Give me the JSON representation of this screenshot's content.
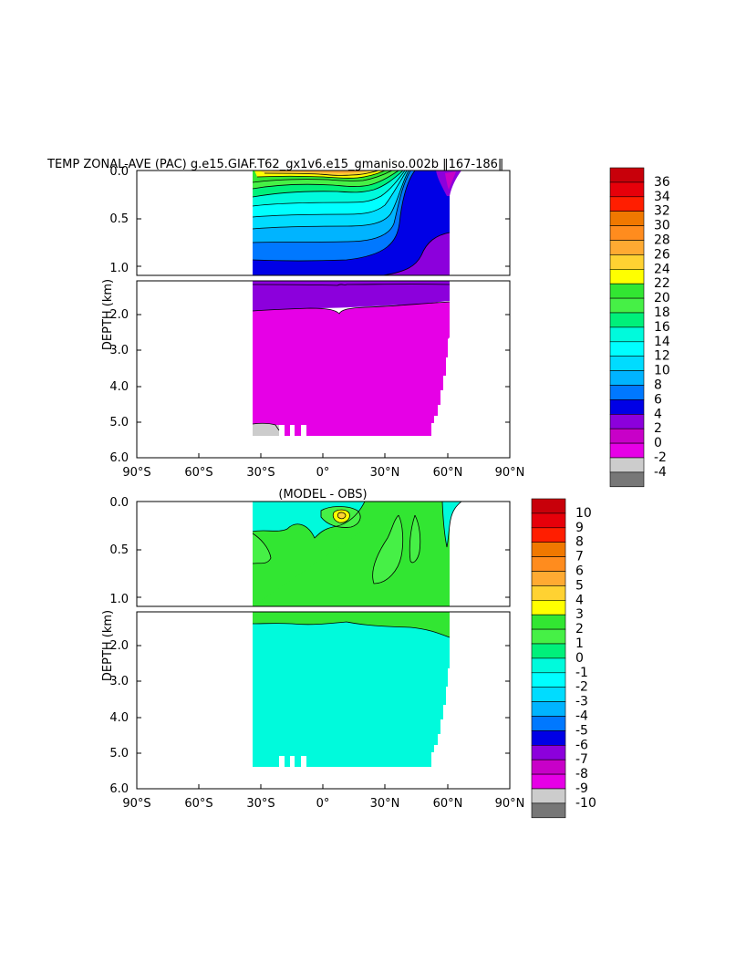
{
  "figure": {
    "title": "TEMP ZONAL-AVE (PAC) g.e15.GIAF.T62_gx1v6.e15_gmaniso.002b ‖167-186‖"
  },
  "chart_data": [
    {
      "type": "heatmap",
      "title": "TEMP ZONAL-AVE (PAC) g.e15.GIAF.T62_gx1v6.e15_gmaniso.002b ‖167-186‖",
      "ylabel": "DEPTH (km)",
      "xlim": [
        -90,
        90
      ],
      "ylim_upper_km": [
        0,
        1.1
      ],
      "ylim_lower_km": [
        1.1,
        6.0
      ],
      "x_ticks": [
        "90°S",
        "60°S",
        "30°S",
        "0°",
        "30°N",
        "60°N",
        "90°N"
      ],
      "y_ticks_upper": [
        "0.0",
        "0.5",
        "1.0"
      ],
      "y_ticks_lower": [
        "2.0",
        "3.0",
        "4.0",
        "5.0",
        "6.0"
      ],
      "colorbar_labels": [
        "36",
        "34",
        "32",
        "30",
        "28",
        "26",
        "24",
        "22",
        "20",
        "18",
        "16",
        "14",
        "12",
        "10",
        "8",
        "6",
        "4",
        "2",
        "0",
        "-2",
        "-4"
      ],
      "colorbar_colors": [
        "#c8000a",
        "#e6000a",
        "#ff1e00",
        "#f07800",
        "#ff8c1e",
        "#ffaa32",
        "#ffd232",
        "#ffff00",
        "#32e632",
        "#46f046",
        "#00f07a",
        "#00fadc",
        "#00ffff",
        "#00dcff",
        "#00b4ff",
        "#0078ff",
        "#0000e6",
        "#8c00dc",
        "#c800c8",
        "#e600e6",
        "#cccccc",
        "#777777"
      ],
      "x_domain": [
        -34,
        61
      ],
      "approx_profile": [
        {
          "depth_km": 0.0,
          "value_range": "22-30 (tropics), 10-14 (high latitudes)"
        },
        {
          "depth_km": 0.5,
          "value_range": "8-10"
        },
        {
          "depth_km": 1.0,
          "value_range": "4-6"
        },
        {
          "depth_km": 1.5,
          "value_range": "2-4"
        },
        {
          "depth_km": 3.0,
          "value_range": "0-2"
        },
        {
          "depth_km": 5.2,
          "value_range": "-2-0 (southern bottom)"
        }
      ]
    },
    {
      "type": "heatmap",
      "title": "(MODEL - OBS)",
      "ylabel": "DEPTH (km)",
      "xlim": [
        -90,
        90
      ],
      "ylim_upper_km": [
        0,
        1.1
      ],
      "ylim_lower_km": [
        1.1,
        6.0
      ],
      "x_ticks": [
        "90°S",
        "60°S",
        "30°S",
        "0°",
        "30°N",
        "60°N",
        "90°N"
      ],
      "y_ticks_upper": [
        "0.0",
        "0.5",
        "1.0"
      ],
      "y_ticks_lower": [
        "2.0",
        "3.0",
        "4.0",
        "5.0",
        "6.0"
      ],
      "colorbar_labels": [
        "10",
        "9",
        "8",
        "7",
        "6",
        "5",
        "4",
        "3",
        "2",
        "1",
        "0",
        "-1",
        "-2",
        "-3",
        "-4",
        "-5",
        "-6",
        "-7",
        "-8",
        "-9",
        "-10"
      ],
      "colorbar_colors": [
        "#c8000a",
        "#e6000a",
        "#ff1e00",
        "#f07800",
        "#ff8c1e",
        "#ffaa32",
        "#ffd232",
        "#ffff00",
        "#32e632",
        "#46f046",
        "#00f07a",
        "#00fadc",
        "#00ffff",
        "#00dcff",
        "#00b4ff",
        "#0078ff",
        "#0000e6",
        "#8c00dc",
        "#c800c8",
        "#e600e6",
        "#cccccc",
        "#777777"
      ],
      "x_domain": [
        -34,
        61
      ],
      "approx_profile": [
        {
          "depth_km": 0.0,
          "value_range": "-1-0 (near surface, west)"
        },
        {
          "depth_km": 0.15,
          "value_range": "2-4 (equatorial anomaly at ~10N)"
        },
        {
          "depth_km": 0.5,
          "value_range": "0-1"
        },
        {
          "depth_km": 1.0,
          "value_range": "0-1"
        },
        {
          "depth_km": 3.0,
          "value_range": "-1-0"
        }
      ]
    }
  ]
}
